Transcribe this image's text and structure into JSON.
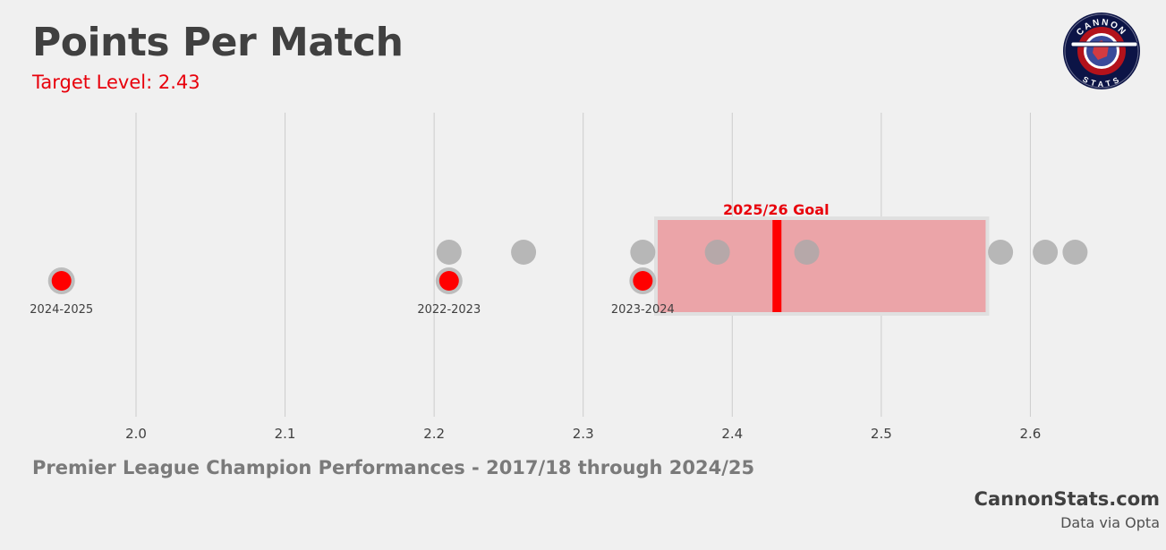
{
  "header": {
    "title": "Points Per Match",
    "subtitle": "Target Level: 2.43"
  },
  "logo": {
    "top_text": "CANNON",
    "bottom_text": "STATS",
    "ring_color": "#0c1446",
    "inner_color": "#b3121b"
  },
  "footer": {
    "caption": "Premier League Champion Performances - 2017/18 through 2024/25",
    "brand": "CannonStats.com",
    "source": "Data via Opta"
  },
  "colors": {
    "background": "#f0f0f0",
    "champion_point": "#a9a9a9",
    "highlight_point": "#ff0000",
    "goal_box": "#f08a90",
    "goal_line": "#ff0000",
    "grid": "#cccccc"
  },
  "chart_data": {
    "type": "scatter",
    "xlabel": "",
    "ylabel": "",
    "xlim": [
      1.935,
      2.65
    ],
    "xticks": [
      "2.0",
      "2.1",
      "2.2",
      "2.3",
      "2.4",
      "2.5",
      "2.6"
    ],
    "xtick_values": [
      2.0,
      2.1,
      2.2,
      2.3,
      2.4,
      2.5,
      2.6
    ],
    "grid": true,
    "series": [
      {
        "role": "champions",
        "values": [
          2.21,
          2.26,
          2.34,
          2.39,
          2.45,
          2.58,
          2.61,
          2.63
        ]
      },
      {
        "role": "highlighted",
        "points": [
          {
            "x": 1.95,
            "label": "2024-2025"
          },
          {
            "x": 2.21,
            "label": "2022-2023"
          },
          {
            "x": 2.34,
            "label": "2023-2024"
          }
        ]
      }
    ],
    "goal": {
      "label": "2025/26 Goal",
      "value": 2.43,
      "range": [
        2.35,
        2.57
      ]
    }
  }
}
